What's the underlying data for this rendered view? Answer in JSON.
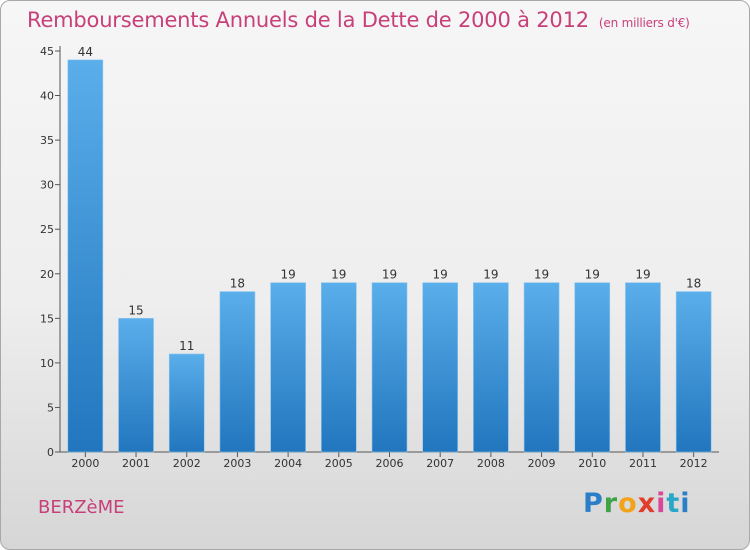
{
  "title": "Remboursements Annuels de la Dette de 2000 à 2012",
  "subtitle": "(en milliers d'€)",
  "place_name": "BERZèME",
  "logo_text": "Proxiti",
  "colors": {
    "bar": "#3d8fd6",
    "title": "#c8407a"
  },
  "chart_data": {
    "type": "bar",
    "categories": [
      "2000",
      "2001",
      "2002",
      "2003",
      "2004",
      "2005",
      "2006",
      "2007",
      "2008",
      "2009",
      "2010",
      "2011",
      "2012"
    ],
    "values": [
      44,
      15,
      11,
      18,
      19,
      19,
      19,
      19,
      19,
      19,
      19,
      19,
      18
    ],
    "ylim": [
      0,
      45
    ],
    "yticks": [
      0,
      5,
      10,
      15,
      20,
      25,
      30,
      35,
      40,
      45
    ],
    "grid": false,
    "legend": "none"
  }
}
